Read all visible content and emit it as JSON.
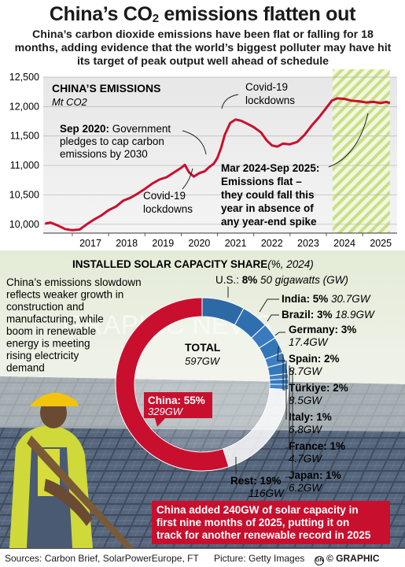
{
  "header": {
    "title_prefix": "China’s CO",
    "title_sub": "2",
    "title_suffix": " emissions flatten out",
    "subtitle": "China’s carbon dioxide emissions have been flat or falling for 18 months, adding evidence that the world’s biggest polluter may have hit its target of peak output well ahead of schedule"
  },
  "emissions_chart": {
    "heading": "CHINA’S EMISSIONS",
    "unit": "Mt CO2",
    "annotations": {
      "sep2020_bold": "Sep 2020:",
      "sep2020_rest": " Government",
      "sep2020_line2": "pledges to cap carbon",
      "sep2020_line3": "emissions by 2030",
      "covid_top_1": "Covid-19",
      "covid_top_2": "lockdowns",
      "covid_bottom_1": "Covid-19",
      "covid_bottom_2": "lockdowns",
      "flat_1": "Mar 2024-Sep 2025:",
      "flat_2": "Emissions flat –",
      "flat_3": "they could fall this",
      "flat_4": "year in absence of",
      "flat_5": "any year-end spike"
    }
  },
  "chart_data": [
    {
      "type": "line",
      "title": "CHINA’S EMISSIONS",
      "ylabel": "Mt CO2",
      "ylim": [
        9850,
        12500
      ],
      "y_ticks": [
        10000,
        10500,
        11000,
        11500,
        12000,
        12500
      ],
      "y_tick_labels": [
        "10,000",
        "10,500",
        "11,000",
        "11,500",
        "12,000",
        "12,500"
      ],
      "x_ticks": [
        2017,
        2018,
        2019,
        2020,
        2021,
        2022,
        2023,
        2024,
        2025
      ],
      "x_tick_labels": [
        "2017",
        "2018",
        "2019",
        "2020",
        "2021",
        "2022",
        "2023",
        "2024",
        "2025"
      ],
      "highlight_range": [
        2024.17,
        2025.75
      ],
      "series": [
        {
          "color": "#c8102e",
          "points": [
            [
              2016.25,
              10010
            ],
            [
              2016.4,
              10030
            ],
            [
              2016.6,
              9980
            ],
            [
              2016.8,
              9920
            ],
            [
              2017.0,
              9900
            ],
            [
              2017.2,
              9910
            ],
            [
              2017.4,
              10000
            ],
            [
              2017.6,
              10080
            ],
            [
              2017.8,
              10150
            ],
            [
              2018.0,
              10240
            ],
            [
              2018.2,
              10300
            ],
            [
              2018.4,
              10400
            ],
            [
              2018.6,
              10450
            ],
            [
              2018.8,
              10520
            ],
            [
              2019.0,
              10600
            ],
            [
              2019.2,
              10690
            ],
            [
              2019.4,
              10760
            ],
            [
              2019.6,
              10800
            ],
            [
              2019.8,
              10880
            ],
            [
              2020.0,
              10960
            ],
            [
              2020.1,
              11010
            ],
            [
              2020.22,
              10880
            ],
            [
              2020.35,
              10810
            ],
            [
              2020.5,
              10870
            ],
            [
              2020.65,
              10900
            ],
            [
              2020.75,
              10960
            ],
            [
              2020.9,
              11030
            ],
            [
              2021.0,
              11130
            ],
            [
              2021.1,
              11300
            ],
            [
              2021.2,
              11520
            ],
            [
              2021.35,
              11720
            ],
            [
              2021.5,
              11780
            ],
            [
              2021.65,
              11760
            ],
            [
              2021.85,
              11700
            ],
            [
              2022.0,
              11650
            ],
            [
              2022.2,
              11560
            ],
            [
              2022.35,
              11430
            ],
            [
              2022.5,
              11340
            ],
            [
              2022.65,
              11320
            ],
            [
              2022.8,
              11370
            ],
            [
              2023.0,
              11360
            ],
            [
              2023.2,
              11400
            ],
            [
              2023.4,
              11520
            ],
            [
              2023.6,
              11680
            ],
            [
              2023.8,
              11820
            ],
            [
              2024.0,
              11980
            ],
            [
              2024.15,
              12100
            ],
            [
              2024.3,
              12140
            ],
            [
              2024.5,
              12130
            ],
            [
              2024.7,
              12100
            ],
            [
              2024.9,
              12090
            ],
            [
              2025.1,
              12070
            ],
            [
              2025.3,
              12080
            ],
            [
              2025.5,
              12060
            ],
            [
              2025.65,
              12080
            ],
            [
              2025.75,
              12060
            ]
          ]
        }
      ]
    },
    {
      "type": "pie",
      "title": "INSTALLED SOLAR CAPACITY SHARE",
      "title_qualifier": "(%, 2024)",
      "total_label": "TOTAL",
      "total_value": "597GW",
      "slices": [
        {
          "label": "China",
          "percent": 55,
          "gw": "329GW",
          "color": "#c8102e"
        },
        {
          "label": "U.S.",
          "percent": 8,
          "gw": "50 gigawatts (GW)",
          "color": "#2d6aa5"
        },
        {
          "label": "India",
          "percent": 5,
          "gw": "30.7GW",
          "color": "#2f6fb0"
        },
        {
          "label": "Brazil",
          "percent": 3,
          "gw": "18.9GW",
          "color": "#3a7bbf"
        },
        {
          "label": "Germany",
          "percent": 3,
          "gw": "17.4GW",
          "color": "#3276b8"
        },
        {
          "label": "Spain",
          "percent": 2,
          "gw": "8.7GW",
          "color": "#3d7fc2"
        },
        {
          "label": "Türkiye",
          "percent": 2,
          "gw": "8.5GW",
          "color": "#3478ba"
        },
        {
          "label": "Italy",
          "percent": 1,
          "gw": "6.8GW",
          "color": "#3f82c4"
        },
        {
          "label": "France",
          "percent": 1,
          "gw": "4.7GW",
          "color": "#3579bb"
        },
        {
          "label": "Japan",
          "percent": 1,
          "gw": "6.2GW",
          "color": "#4085c6"
        },
        {
          "label": "Rest",
          "percent": 19,
          "gw": "116GW",
          "color": "#ffffff"
        }
      ]
    }
  ],
  "solar_section": {
    "heading": "INSTALLED SOLAR CAPACITY SHARE",
    "qualifier": "(%, 2024)",
    "side_text": [
      "China’s emissions slowdown",
      "reflects weaker growth in",
      "construction and",
      "manufacturing, while",
      "boom in renewable",
      "energy is meeting",
      "rising electricity",
      "demand"
    ],
    "labels": {
      "us_name": "U.S.: ",
      "us_pct": "8%",
      "us_gw": " 50 gigawatts (GW)",
      "india_name": "India: 5% ",
      "india_gw": "30.7GW",
      "brazil_name": "Brazil: 3% ",
      "brazil_gw": "18.9GW",
      "germany_name": "Germany: 3%",
      "germany_gw": "17.4GW",
      "spain_name": "Spain: 2%",
      "spain_gw": "8.7GW",
      "turkiye_name": "Türkiye: 2%",
      "turkiye_gw": "8.5GW",
      "italy_name": "Italy: 1%",
      "italy_gw": "6.8GW",
      "france_name": "France: 1%",
      "france_gw": "4.7GW",
      "japan_name": "Japan: 1%",
      "japan_gw": "6.2GW",
      "rest_name": "Rest: 19%",
      "rest_gw": "116GW",
      "china_name": "China: 55%",
      "china_gw": "329GW",
      "total": "TOTAL",
      "total_gw": "597GW"
    },
    "callout": [
      "China added 240GW of solar capacity in",
      "first nine months of 2025, putting it on",
      "track for another renewable record in 2025"
    ],
    "watermark": "GRAPHIC NEWS"
  },
  "footer": {
    "sources": "Sources: Carbon Brief, SolarPowerEurope, FT",
    "picture": "Picture: Getty Images",
    "logo_mark": "GN",
    "credit": "© GRAPHIC NEWS"
  }
}
